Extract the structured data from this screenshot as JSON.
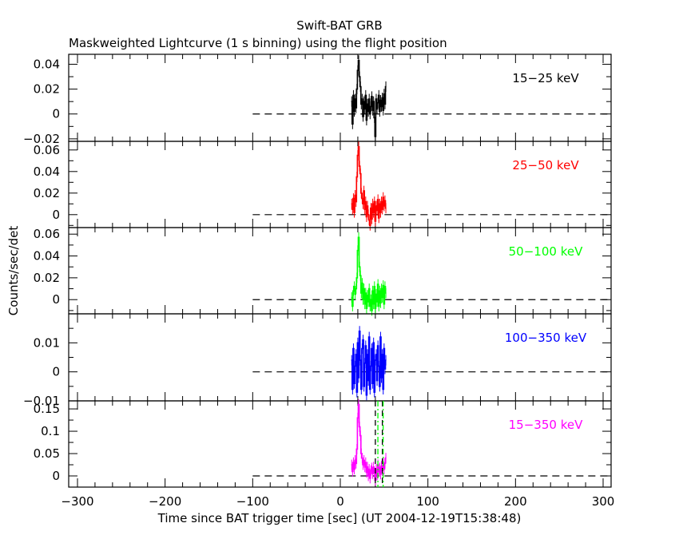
{
  "chart_data": {
    "type": "line",
    "title": "Swift-BAT GRB",
    "subtitle": "Maskweighted Lightcurve (1 s binning) using the flight position",
    "xlabel": "Time since BAT trigger time [sec] (UT 2004-12-19T15:38:48)",
    "ylabel": "Counts/sec/det",
    "xlim": [
      -310,
      310
    ],
    "x_ticks": [
      -300,
      -200,
      -100,
      0,
      100,
      200,
      300
    ],
    "x_tick_labels": [
      "−300",
      "−200",
      "−100",
      "0",
      "100",
      "200",
      "300"
    ],
    "zero_line_start": -100,
    "vlines_black_dashed": [
      40,
      48
    ],
    "vlines_green_dashdot": [
      42,
      48
    ],
    "time": [
      13,
      14,
      15,
      16,
      17,
      18,
      19,
      20,
      21,
      22,
      23,
      24,
      25,
      26,
      27,
      28,
      29,
      30,
      31,
      32,
      33,
      34,
      35,
      36,
      37,
      38,
      39,
      40,
      41,
      42,
      43,
      44,
      45,
      46,
      47,
      48,
      49,
      50,
      51,
      52
    ],
    "panels": [
      {
        "label": "15−25 keV",
        "color": "#000000",
        "ylim": [
          -0.022,
          0.048
        ],
        "y_ticks": [
          -0.02,
          0,
          0.02,
          0.04
        ],
        "y_tick_labels": [
          "−0.02",
          "0",
          "0.02",
          "0.04"
        ],
        "values": [
          0.01,
          -0.008,
          0.015,
          0.002,
          0.012,
          0.005,
          0.02,
          0.035,
          0.043,
          0.03,
          0.022,
          0.008,
          0.012,
          -0.002,
          0.01,
          0.004,
          0.015,
          -0.005,
          0.008,
          0.002,
          0.012,
          0.0,
          0.006,
          0.014,
          0.003,
          0.01,
          -0.003,
          -0.018,
          0.012,
          0.004,
          0.009,
          0.015,
          0.002,
          0.011,
          0.006,
          0.013,
          0.003,
          0.016,
          0.008,
          0.022
        ]
      },
      {
        "label": "25−50 keV",
        "color": "#ff0000",
        "ylim": [
          -0.012,
          0.068
        ],
        "y_ticks": [
          0,
          0.02,
          0.04,
          0.06
        ],
        "y_tick_labels": [
          "0",
          "0.02",
          "0.04",
          "0.06"
        ],
        "values": [
          0.01,
          0.005,
          0.015,
          0.002,
          0.018,
          0.012,
          0.035,
          0.055,
          0.063,
          0.045,
          0.038,
          0.02,
          0.015,
          0.01,
          0.022,
          0.005,
          0.012,
          -0.002,
          0.008,
          0.0,
          -0.005,
          -0.01,
          0.006,
          -0.004,
          0.01,
          0.002,
          0.012,
          -0.006,
          0.008,
          0.004,
          0.014,
          -0.003,
          0.01,
          0.002,
          0.012,
          0.005,
          0.016,
          0.008,
          0.013,
          0.006
        ]
      },
      {
        "label": "50−100 keV",
        "color": "#00ff00",
        "ylim": [
          -0.013,
          0.066
        ],
        "y_ticks": [
          0,
          0.02,
          0.04,
          0.06
        ],
        "y_tick_labels": [
          "0",
          "0.02",
          "0.04",
          "0.06"
        ],
        "values": [
          0.002,
          -0.006,
          0.008,
          0.012,
          0.005,
          0.01,
          0.02,
          0.045,
          0.057,
          0.03,
          0.022,
          0.006,
          0.015,
          0.0,
          0.01,
          -0.004,
          0.006,
          -0.008,
          0.004,
          -0.002,
          0.01,
          -0.006,
          0.0,
          -0.01,
          0.008,
          -0.004,
          0.012,
          -0.008,
          0.005,
          -0.002,
          0.014,
          -0.006,
          0.008,
          -0.003,
          0.01,
          0.002,
          0.013,
          -0.004,
          0.012,
          0.006
        ]
      },
      {
        "label": "100−350 keV",
        "color": "#0000ff",
        "ylim": [
          -0.01,
          0.02
        ],
        "y_ticks": [
          -0.01,
          0,
          0.01
        ],
        "y_tick_labels": [
          "−0.01",
          "0",
          "0.01"
        ],
        "values": [
          0.004,
          -0.006,
          0.008,
          -0.004,
          0.002,
          0.006,
          -0.007,
          0.01,
          -0.002,
          0.014,
          0.004,
          -0.006,
          0.008,
          0.011,
          -0.005,
          0.003,
          0.009,
          -0.008,
          0.006,
          -0.003,
          0.012,
          -0.006,
          0.002,
          0.008,
          -0.004,
          0.01,
          -0.007,
          0.004,
          0.006,
          -0.003,
          0.009,
          0.002,
          -0.005,
          0.012,
          -0.002,
          0.006,
          -0.006,
          0.008,
          0.001,
          0.004
        ]
      },
      {
        "label": "15−350 keV",
        "color": "#ff00ff",
        "ylim": [
          -0.025,
          0.168
        ],
        "y_ticks": [
          0,
          0.05,
          0.1,
          0.15
        ],
        "y_tick_labels": [
          "0",
          "0.05",
          "0.1",
          "0.15"
        ],
        "values": [
          0.025,
          0.01,
          0.03,
          0.015,
          0.035,
          0.028,
          0.06,
          0.13,
          0.16,
          0.11,
          0.09,
          0.05,
          0.04,
          0.025,
          0.035,
          0.02,
          0.03,
          0.008,
          0.02,
          0.0,
          0.015,
          -0.005,
          0.012,
          0.018,
          0.005,
          0.02,
          0.008,
          -0.01,
          0.015,
          0.002,
          0.025,
          0.01,
          0.018,
          0.004,
          0.022,
          0.012,
          0.03,
          0.015,
          0.028,
          0.04
        ]
      }
    ]
  }
}
